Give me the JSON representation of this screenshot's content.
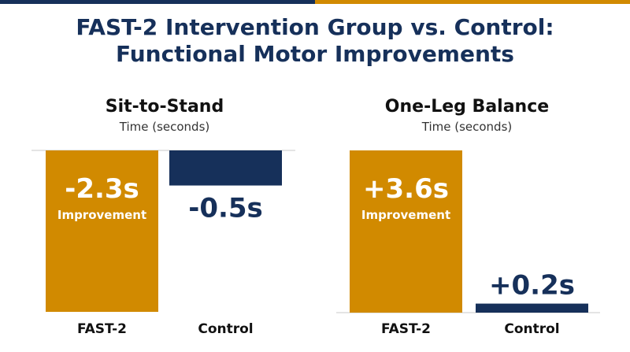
{
  "colors": {
    "navy": "#16305a",
    "gold": "#d18a00",
    "white": "#ffffff",
    "axis": "#c9c9c9",
    "text_dark": "#111111",
    "text_mid": "#333333"
  },
  "header": {
    "title_line1": "FAST-2 Intervention Group vs. Control:",
    "title_line2": "Functional Motor Improvements"
  },
  "chart_data": [
    {
      "type": "bar",
      "title": "Sit-to-Stand",
      "subtitle": "Time (seconds)",
      "categories": [
        "FAST-2",
        "Control"
      ],
      "values": [
        -2.3,
        -0.5
      ],
      "value_labels": [
        "-2.3s",
        "-0.5s"
      ],
      "sub_labels": [
        "Improvement",
        ""
      ],
      "bar_colors": [
        "#d18a00",
        "#16305a"
      ],
      "orientation": "downward",
      "ylim": [
        0,
        -2.3
      ],
      "grid": false
    },
    {
      "type": "bar",
      "title": "One-Leg Balance",
      "subtitle": "Time (seconds)",
      "categories": [
        "FAST-2",
        "Control"
      ],
      "values": [
        3.6,
        0.2
      ],
      "value_labels": [
        "+3.6s",
        "+0.2s"
      ],
      "sub_labels": [
        "Improvement",
        ""
      ],
      "bar_colors": [
        "#d18a00",
        "#16305a"
      ],
      "orientation": "upward",
      "ylim": [
        0,
        3.6
      ],
      "grid": false
    }
  ]
}
